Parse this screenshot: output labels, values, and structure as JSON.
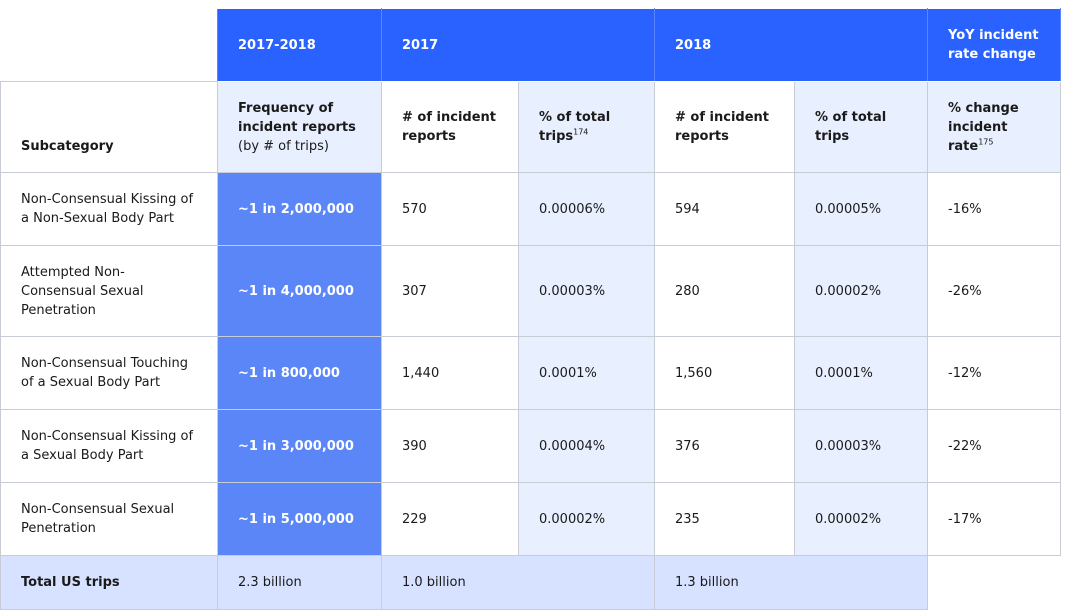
{
  "top_headers": {
    "period": "2017-2018",
    "year_2017": "2017",
    "year_2018": "2018",
    "yoy": "YoY incident rate change"
  },
  "sub_headers": {
    "subcategory": "Subcategory",
    "frequency": "Frequency of incident reports",
    "frequency_note": "(by # of trips)",
    "reports_2017": "# of incident reports",
    "pct_2017": "% of total trips",
    "pct_2017_footnote": "174",
    "reports_2018": "# of incident reports",
    "pct_2018": "% of total trips",
    "change": "% change incident rate",
    "change_footnote": "175"
  },
  "rows": [
    {
      "subcategory": "Non-Consensual Kissing of a Non-Sexual Body Part",
      "frequency": "~1 in 2,000,000",
      "reports_2017": "570",
      "pct_2017": "0.00006%",
      "reports_2018": "594",
      "pct_2018": "0.00005%",
      "change": "-16%"
    },
    {
      "subcategory": "Attempted Non-Consensual Sexual Penetration",
      "frequency": "~1 in 4,000,000",
      "reports_2017": "307",
      "pct_2017": "0.00003%",
      "reports_2018": "280",
      "pct_2018": "0.00002%",
      "change": "-26%"
    },
    {
      "subcategory": "Non-Consensual Touching of a Sexual Body Part",
      "frequency": "~1 in 800,000",
      "reports_2017": "1,440",
      "pct_2017": "0.0001%",
      "reports_2018": "1,560",
      "pct_2018": "0.0001%",
      "change": "-12%"
    },
    {
      "subcategory": "Non-Consensual Kissing of a Sexual Body Part",
      "frequency": "~1 in 3,000,000",
      "reports_2017": "390",
      "pct_2017": "0.00004%",
      "reports_2018": "376",
      "pct_2018": "0.00003%",
      "change": "-22%"
    },
    {
      "subcategory": "Non-Consensual Sexual Penetration",
      "frequency": "~1 in 5,000,000",
      "reports_2017": "229",
      "pct_2017": "0.00002%",
      "reports_2018": "235",
      "pct_2018": "0.00002%",
      "change": "-17%"
    }
  ],
  "total": {
    "label": "Total US trips",
    "period": "2.3 billion",
    "year_2017": "1.0 billion",
    "year_2018": "1.3 billion"
  },
  "colors": {
    "header_blue": "#2962ff",
    "frequency_blue": "#5b86f7",
    "light_blue": "#e8efff",
    "total_blue": "#d6e2ff"
  }
}
